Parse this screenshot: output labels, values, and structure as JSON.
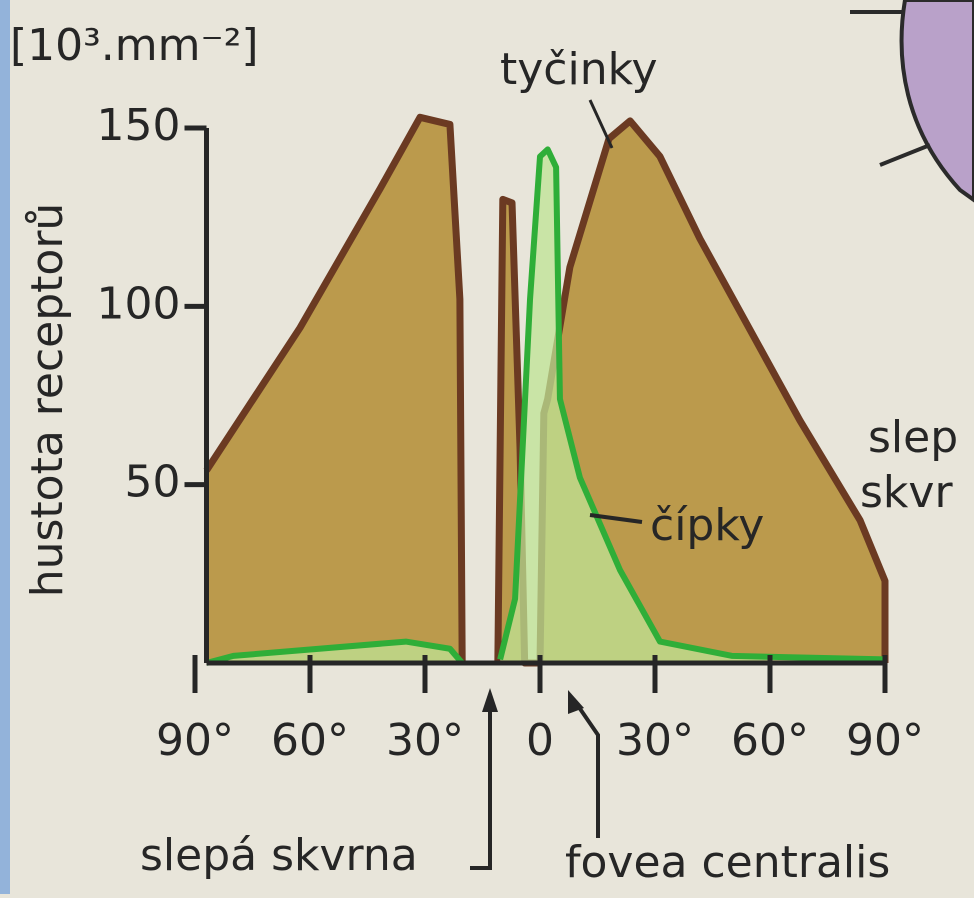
{
  "chart_data": {
    "type": "area",
    "y_unit": "[10³.mm⁻²]",
    "ylabel": "hustota receptorů",
    "xlim": [
      -90,
      90
    ],
    "ylim": [
      0,
      150
    ],
    "yticks": [
      50,
      100,
      150
    ],
    "xticks": [
      {
        "value": -90,
        "label": "90°"
      },
      {
        "value": -60,
        "label": "60°"
      },
      {
        "value": -30,
        "label": "30°"
      },
      0,
      {
        "value": 30,
        "label": "30°"
      },
      {
        "value": 60,
        "label": "60°"
      },
      {
        "value": 90,
        "label": "90°"
      }
    ],
    "series": [
      {
        "name": "tyčinky",
        "color": "#6b3a22",
        "fill": "#bb9a4c",
        "x": [
          -87,
          -62.6,
          -41.7,
          -31.3,
          -23.5,
          -20.9,
          -20.3,
          -15,
          -11,
          -9.7,
          -7.3,
          -5.2,
          -4,
          0,
          1,
          2,
          7.8,
          18,
          23.5,
          31.3,
          41.7,
          67.8,
          83.5,
          90,
          90
        ],
        "values": [
          54,
          94,
          133,
          153,
          151,
          102,
          0,
          null,
          0,
          130,
          129,
          60,
          0,
          0,
          70,
          74,
          111,
          147,
          152,
          142,
          119,
          68,
          40,
          23,
          0
        ]
      },
      {
        "name": "čípky",
        "color": "#2fae38",
        "fill": "#bfe394",
        "x": [
          -87,
          -80,
          -35,
          -23.5,
          -20.3,
          -15,
          -10.4,
          -6.5,
          -2.6,
          0,
          2,
          4.2,
          5.2,
          10.4,
          20.9,
          31.3,
          50,
          90
        ],
        "values": [
          0,
          2,
          6,
          4,
          0,
          null,
          1,
          18,
          102,
          142,
          144,
          139,
          74,
          52,
          26,
          6,
          2,
          1
        ]
      }
    ],
    "annotations": [
      "slepá skvrna",
      "fovea centralis"
    ],
    "side_text": [
      "slep",
      "skvr"
    ]
  }
}
